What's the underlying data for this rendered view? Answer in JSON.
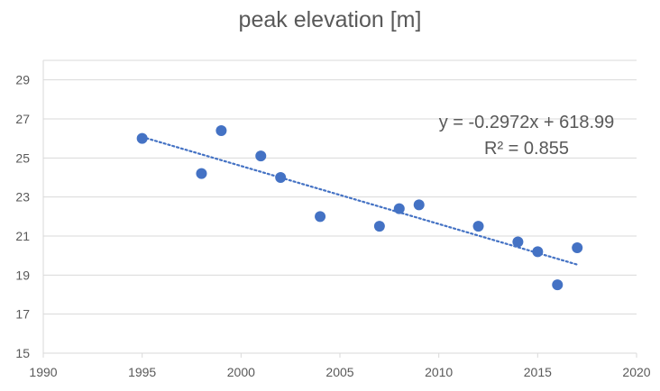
{
  "chart_data": {
    "type": "scatter",
    "title": "peak elevation [m]",
    "xlabel": "",
    "ylabel": "",
    "xlim": [
      1990,
      2020
    ],
    "ylim": [
      15,
      30
    ],
    "x_ticks": [
      1990,
      1995,
      2000,
      2005,
      2010,
      2015,
      2020
    ],
    "y_ticks": [
      15,
      17,
      19,
      21,
      23,
      25,
      27,
      29
    ],
    "grid": "horizontal",
    "series": [
      {
        "points": [
          {
            "x": 1995,
            "y": 26.0
          },
          {
            "x": 1998,
            "y": 24.2
          },
          {
            "x": 1999,
            "y": 26.4
          },
          {
            "x": 2001,
            "y": 25.1
          },
          {
            "x": 2002,
            "y": 24.0
          },
          {
            "x": 2004,
            "y": 22.0
          },
          {
            "x": 2007,
            "y": 21.5
          },
          {
            "x": 2008,
            "y": 22.4
          },
          {
            "x": 2009,
            "y": 22.6
          },
          {
            "x": 2012,
            "y": 21.5
          },
          {
            "x": 2014,
            "y": 20.7
          },
          {
            "x": 2015,
            "y": 20.2
          },
          {
            "x": 2016,
            "y": 18.5
          },
          {
            "x": 2017,
            "y": 20.4
          }
        ],
        "color": "#4472C4"
      }
    ],
    "trendline": {
      "slope": -0.2972,
      "intercept": 618.99,
      "x_range": [
        1995,
        2017
      ],
      "equation": "y = -0.2972x + 618.99",
      "r_squared": "R² = 0.855",
      "color": "#4472C4",
      "style": "dotted"
    }
  }
}
